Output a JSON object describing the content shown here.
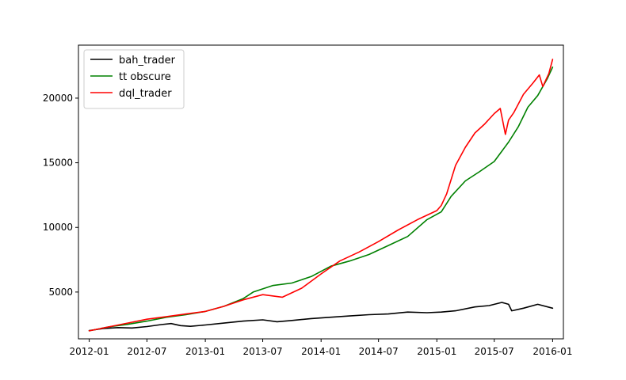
{
  "chart_data": {
    "type": "line",
    "x_type": "date",
    "xlim": [
      "2011-11-28",
      "2016-02-04"
    ],
    "ylim": [
      1380,
      24100
    ],
    "x_ticks": [
      "2012-01",
      "2012-07",
      "2013-01",
      "2013-07",
      "2014-01",
      "2014-07",
      "2015-01",
      "2015-07",
      "2016-01"
    ],
    "y_ticks": [
      5000,
      10000,
      15000,
      20000
    ],
    "y_tick_labels": [
      "5000",
      "10000",
      "15000",
      "20000"
    ],
    "grid": false,
    "legend_position": "upper-left",
    "series": [
      {
        "name": "bah_trader",
        "color": "#000000",
        "x": [
          "2012-01-01",
          "2012-02-15",
          "2012-04-01",
          "2012-05-15",
          "2012-07-01",
          "2012-08-15",
          "2012-09-15",
          "2012-10-15",
          "2012-11-15",
          "2013-01-01",
          "2013-03-01",
          "2013-05-01",
          "2013-07-01",
          "2013-08-15",
          "2013-10-01",
          "2013-12-01",
          "2014-02-01",
          "2014-04-01",
          "2014-06-01",
          "2014-08-01",
          "2014-10-01",
          "2014-12-01",
          "2015-01-15",
          "2015-03-01",
          "2015-05-01",
          "2015-06-15",
          "2015-07-25",
          "2015-08-15",
          "2015-08-25",
          "2015-10-01",
          "2015-11-15",
          "2016-01-01"
        ],
        "values": [
          2020,
          2180,
          2250,
          2220,
          2330,
          2480,
          2560,
          2400,
          2350,
          2450,
          2600,
          2750,
          2850,
          2700,
          2800,
          2950,
          3050,
          3150,
          3250,
          3300,
          3450,
          3400,
          3450,
          3550,
          3850,
          3950,
          4200,
          4050,
          3550,
          3750,
          4050,
          3750
        ]
      },
      {
        "name": "tt obscure",
        "color": "#008000",
        "x": [
          "2012-01-01",
          "2012-03-01",
          "2012-05-01",
          "2012-07-01",
          "2012-09-01",
          "2012-11-01",
          "2013-01-01",
          "2013-03-01",
          "2013-05-01",
          "2013-06-01",
          "2013-08-01",
          "2013-10-01",
          "2013-12-01",
          "2014-02-01",
          "2014-04-01",
          "2014-06-01",
          "2014-08-01",
          "2014-10-01",
          "2014-12-01",
          "2015-01-15",
          "2015-02-15",
          "2015-04-01",
          "2015-05-15",
          "2015-07-01",
          "2015-08-15",
          "2015-09-15",
          "2015-10-15",
          "2015-11-15",
          "2015-12-15",
          "2016-01-01"
        ],
        "values": [
          2000,
          2300,
          2500,
          2750,
          3050,
          3250,
          3500,
          3900,
          4500,
          5000,
          5500,
          5700,
          6200,
          7000,
          7400,
          7900,
          8600,
          9300,
          10600,
          11200,
          12400,
          13600,
          14300,
          15100,
          16600,
          17800,
          19300,
          20200,
          21500,
          22400
        ]
      },
      {
        "name": "dql_trader",
        "color": "#ff0000",
        "x": [
          "2012-01-01",
          "2012-03-01",
          "2012-05-01",
          "2012-07-01",
          "2012-09-01",
          "2012-11-01",
          "2013-01-01",
          "2013-03-01",
          "2013-05-01",
          "2013-07-01",
          "2013-09-01",
          "2013-11-01",
          "2014-01-01",
          "2014-03-01",
          "2014-05-01",
          "2014-07-01",
          "2014-09-01",
          "2014-11-01",
          "2015-01-01",
          "2015-01-15",
          "2015-02-01",
          "2015-03-01",
          "2015-04-01",
          "2015-05-01",
          "2015-06-01",
          "2015-07-01",
          "2015-07-20",
          "2015-08-05",
          "2015-08-15",
          "2015-09-01",
          "2015-10-01",
          "2015-11-01",
          "2015-11-20",
          "2015-12-01",
          "2015-12-20",
          "2016-01-01"
        ],
        "values": [
          2000,
          2300,
          2600,
          2900,
          3100,
          3300,
          3500,
          3900,
          4400,
          4800,
          4600,
          5300,
          6400,
          7400,
          8100,
          8900,
          9800,
          10600,
          11300,
          11700,
          12600,
          14800,
          16200,
          17300,
          18000,
          18800,
          19200,
          17200,
          18300,
          18900,
          20300,
          21200,
          21800,
          20900,
          21900,
          23000
        ]
      }
    ]
  }
}
